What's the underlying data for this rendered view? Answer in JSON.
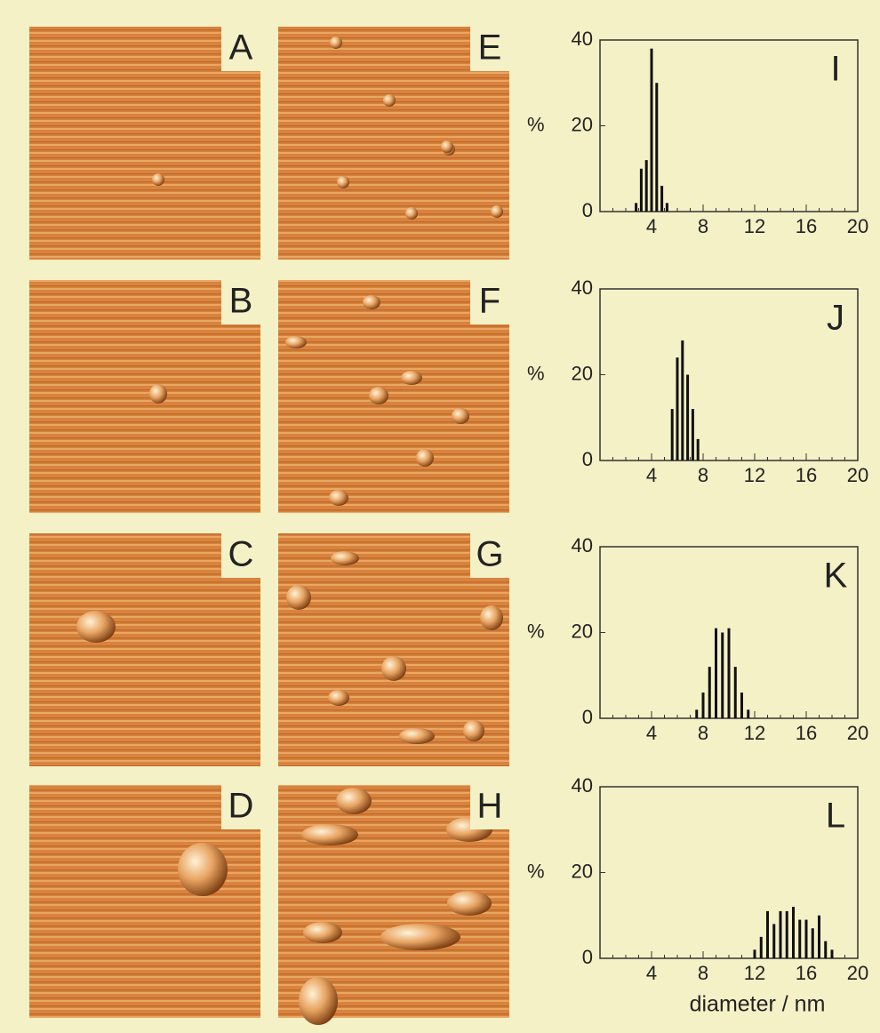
{
  "panels": [
    "A",
    "B",
    "C",
    "D",
    "E",
    "F",
    "G",
    "H"
  ],
  "chart_data": [
    {
      "type": "bar",
      "annotation": "I",
      "ylabel": "%",
      "x": [
        2.8,
        3.2,
        3.6,
        4.0,
        4.4,
        4.8,
        5.2
      ],
      "values": [
        2,
        10,
        12,
        38,
        30,
        6,
        2
      ],
      "color": "#111111",
      "xlim": [
        0,
        20
      ],
      "ylim": [
        0,
        40
      ],
      "xticks": [
        4,
        8,
        12,
        16,
        20
      ],
      "yticks": [
        0,
        20,
        40
      ]
    },
    {
      "type": "bar",
      "annotation": "J",
      "ylabel": "%",
      "x": [
        5.6,
        6.0,
        6.4,
        6.8,
        7.2,
        7.6
      ],
      "values": [
        12,
        24,
        28,
        20,
        12,
        5
      ],
      "color": "#111111",
      "xlim": [
        0,
        20
      ],
      "ylim": [
        0,
        40
      ],
      "xticks": [
        4,
        8,
        12,
        16,
        20
      ],
      "yticks": [
        0,
        20,
        40
      ]
    },
    {
      "type": "bar",
      "annotation": "K",
      "ylabel": "%",
      "x": [
        7.5,
        8.0,
        8.5,
        9.0,
        9.5,
        10.0,
        10.5,
        11.0,
        11.5
      ],
      "values": [
        2,
        6,
        12,
        21,
        20,
        21,
        12,
        6,
        2
      ],
      "color": "#111111",
      "xlim": [
        0,
        20
      ],
      "ylim": [
        0,
        40
      ],
      "xticks": [
        4,
        8,
        12,
        16,
        20
      ],
      "yticks": [
        0,
        20,
        40
      ]
    },
    {
      "type": "bar",
      "annotation": "L",
      "ylabel": "%",
      "xlabel": "diameter / nm",
      "x": [
        12.0,
        12.5,
        13.0,
        13.5,
        14.0,
        14.5,
        15.0,
        15.5,
        16.0,
        16.5,
        17.0,
        17.5,
        18.0
      ],
      "values": [
        2,
        5,
        11,
        8,
        11,
        11,
        12,
        9,
        9,
        7,
        10,
        4,
        2
      ],
      "color": "#111111",
      "xlim": [
        0,
        20
      ],
      "ylim": [
        0,
        40
      ],
      "xticks": [
        4,
        8,
        12,
        16,
        20
      ],
      "yticks": [
        0,
        20,
        40
      ]
    }
  ]
}
